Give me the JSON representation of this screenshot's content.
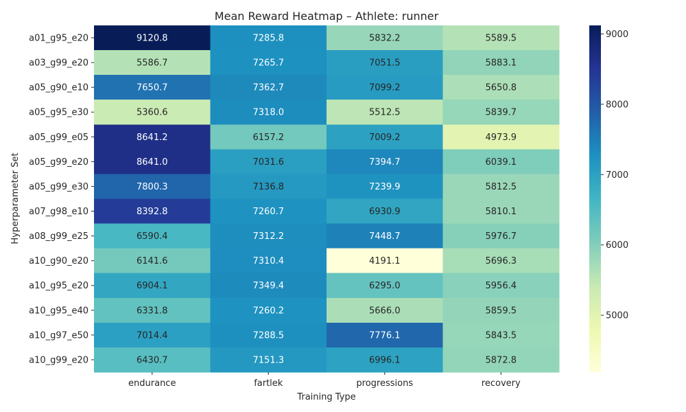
{
  "chart_data": {
    "type": "heatmap",
    "title": "Mean Reward Heatmap – Athlete: runner",
    "xlabel": "Training Type",
    "ylabel": "Hyperparameter Set",
    "columns": [
      "endurance",
      "fartlek",
      "progressions",
      "recovery"
    ],
    "rows": [
      "a01_g95_e20",
      "a03_g99_e20",
      "a05_g90_e10",
      "a05_g95_e30",
      "a05_g99_e05",
      "a05_g99_e20",
      "a05_g99_e30",
      "a07_g98_e10",
      "a08_g99_e25",
      "a10_g90_e20",
      "a10_g95_e20",
      "a10_g95_e40",
      "a10_g97_e50",
      "a10_g99_e20"
    ],
    "values": [
      [
        9120.8,
        7285.8,
        5832.2,
        5589.5
      ],
      [
        5586.7,
        7265.7,
        7051.5,
        5883.1
      ],
      [
        7650.7,
        7362.7,
        7099.2,
        5650.8
      ],
      [
        5360.6,
        7318.0,
        5512.5,
        5839.7
      ],
      [
        8641.2,
        6157.2,
        7009.2,
        4973.9
      ],
      [
        8641.0,
        7031.6,
        7394.7,
        6039.1
      ],
      [
        7800.3,
        7136.8,
        7239.9,
        5812.5
      ],
      [
        8392.8,
        7260.7,
        6930.9,
        5810.1
      ],
      [
        6590.4,
        7312.2,
        7448.7,
        5976.7
      ],
      [
        6141.6,
        7310.4,
        4191.1,
        5696.3
      ],
      [
        6904.1,
        7349.4,
        6295.0,
        5956.4
      ],
      [
        6331.8,
        7260.2,
        5666.0,
        5859.5
      ],
      [
        7014.4,
        7288.5,
        7776.1,
        5843.5
      ],
      [
        6430.7,
        7151.3,
        6996.1,
        5872.8
      ]
    ],
    "value_format": "0.1f",
    "colormap": "YlGnBu",
    "colorbar": {
      "range": [
        4191.1,
        9120.8
      ],
      "ticks": [
        5000,
        6000,
        7000,
        8000,
        9000
      ],
      "tick_labels": [
        "5000",
        "6000",
        "7000",
        "8000",
        "9000"
      ]
    },
    "colors": {
      "text_dark": "#262626",
      "text_light": "#ffffff"
    }
  }
}
